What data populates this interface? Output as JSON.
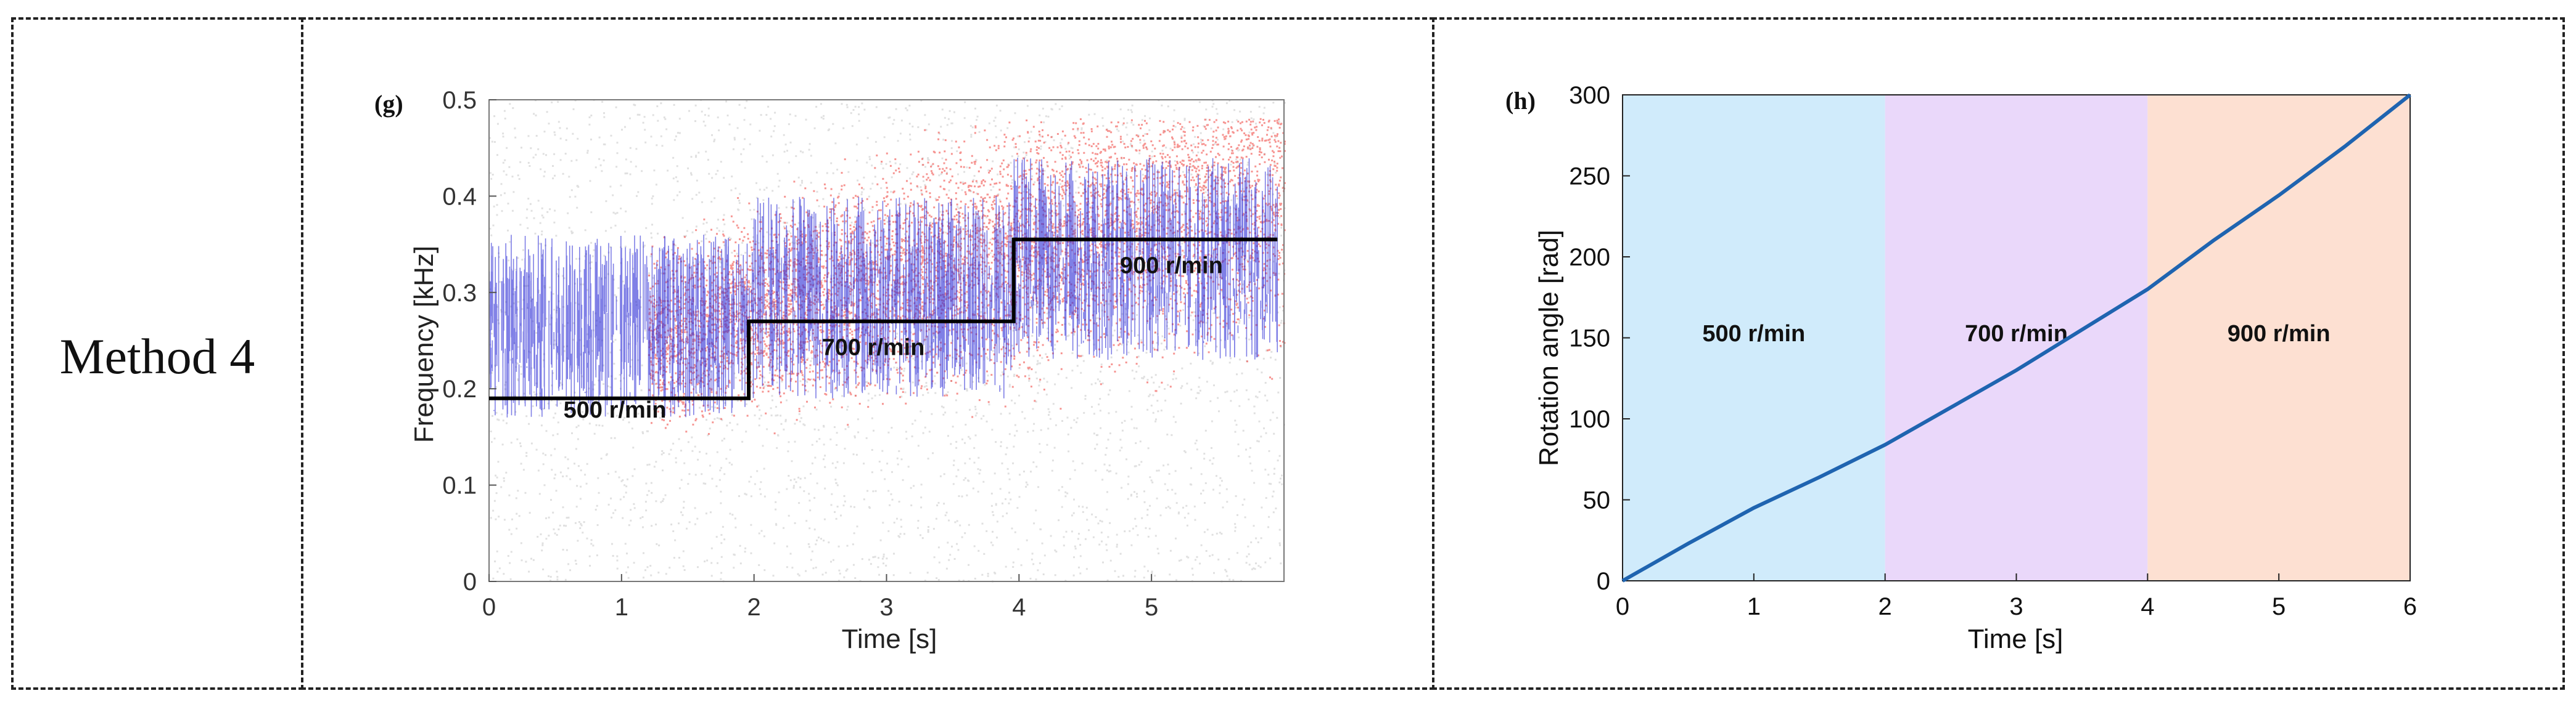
{
  "row_label": "Method 4",
  "chart_data": [
    {
      "panel_label": "(g)",
      "type": "scatter",
      "xlabel": "Time [s]",
      "ylabel": "Frequency [kHz]",
      "xlim": [
        0,
        6
      ],
      "ylim": [
        0,
        0.5
      ],
      "xticks": [
        "0",
        "1",
        "2",
        "3",
        "4",
        "5"
      ],
      "yticks": [
        "0",
        "0.1",
        "0.2",
        "0.3",
        "0.4",
        "0.5"
      ],
      "step_line": {
        "x": [
          0,
          1.96,
          1.96,
          3.96,
          3.96,
          5.95
        ],
        "y": [
          0.19,
          0.19,
          0.27,
          0.27,
          0.355,
          0.355
        ]
      },
      "annotations": [
        {
          "text": "500 r/min",
          "x": 0.95,
          "y": 0.17
        },
        {
          "text": "700 r/min",
          "x": 2.9,
          "y": 0.235
        },
        {
          "text": "900 r/min",
          "x": 5.15,
          "y": 0.32
        }
      ],
      "colors": {
        "blue": "#2b2bd6",
        "red": "#f0403a",
        "grey": "#c8c8c8",
        "step": "#000000"
      }
    },
    {
      "panel_label": "(h)",
      "type": "line",
      "xlabel": "Time [s]",
      "ylabel": "Rotation angle [rad]",
      "xlim": [
        0,
        6
      ],
      "ylim": [
        0,
        300
      ],
      "xticks": [
        "0",
        "1",
        "2",
        "3",
        "4",
        "5",
        "6"
      ],
      "yticks": [
        "0",
        "50",
        "100",
        "150",
        "200",
        "250",
        "300"
      ],
      "x": [
        0,
        0.5,
        1,
        1.5,
        2,
        2.5,
        3,
        3.5,
        4,
        4.5,
        5,
        5.5,
        6
      ],
      "y": [
        0,
        23,
        45,
        64,
        84,
        107,
        130,
        155,
        180,
        210,
        238,
        268,
        300
      ],
      "regions": [
        {
          "label": "500 r/min",
          "x0": 0,
          "x1": 2,
          "color": "#d0ebfb"
        },
        {
          "label": "700 r/min",
          "x0": 2,
          "x1": 4,
          "color": "#ead8fa"
        },
        {
          "label": "900 r/min",
          "x0": 4,
          "x1": 6,
          "color": "#fde0d2"
        }
      ],
      "line_color": "#1f64b0"
    }
  ]
}
